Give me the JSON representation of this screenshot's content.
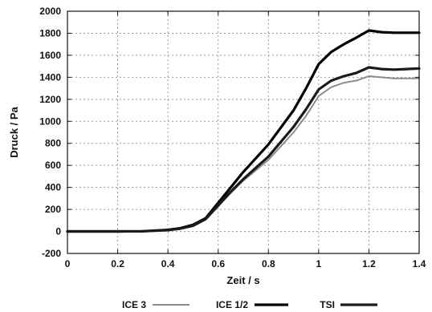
{
  "chart_data": {
    "type": "line",
    "title": "",
    "xlabel": "Zeit / s",
    "ylabel": "Druck / Pa",
    "xlim": [
      0,
      1.4
    ],
    "ylim": [
      -200,
      2000
    ],
    "xticks": [
      "0",
      "0.2",
      "0.4",
      "0.6",
      "0.8",
      "1",
      "1.2",
      "1.4"
    ],
    "yticks": [
      "-200",
      "0",
      "200",
      "400",
      "600",
      "800",
      "1000",
      "1200",
      "1400",
      "1600",
      "1800",
      "2000"
    ],
    "grid": true,
    "legend_position": "bottom",
    "series": [
      {
        "name": "ICE 3",
        "color": "#8c8c8c",
        "points": [
          [
            0,
            0
          ],
          [
            0.2,
            0
          ],
          [
            0.3,
            2
          ],
          [
            0.4,
            12
          ],
          [
            0.45,
            25
          ],
          [
            0.5,
            50
          ],
          [
            0.55,
            110
          ],
          [
            0.6,
            230
          ],
          [
            0.65,
            350
          ],
          [
            0.7,
            460
          ],
          [
            0.8,
            650
          ],
          [
            0.9,
            900
          ],
          [
            0.95,
            1050
          ],
          [
            1.0,
            1230
          ],
          [
            1.05,
            1310
          ],
          [
            1.1,
            1350
          ],
          [
            1.15,
            1370
          ],
          [
            1.2,
            1410
          ],
          [
            1.25,
            1400
          ],
          [
            1.3,
            1390
          ],
          [
            1.35,
            1390
          ],
          [
            1.4,
            1390
          ]
        ]
      },
      {
        "name": "ICE 1/2",
        "color": "#000000",
        "points": [
          [
            0,
            0
          ],
          [
            0.2,
            0
          ],
          [
            0.3,
            2
          ],
          [
            0.4,
            14
          ],
          [
            0.45,
            30
          ],
          [
            0.5,
            60
          ],
          [
            0.55,
            120
          ],
          [
            0.6,
            260
          ],
          [
            0.65,
            400
          ],
          [
            0.7,
            540
          ],
          [
            0.8,
            790
          ],
          [
            0.9,
            1100
          ],
          [
            0.95,
            1300
          ],
          [
            1.0,
            1520
          ],
          [
            1.05,
            1630
          ],
          [
            1.1,
            1700
          ],
          [
            1.15,
            1760
          ],
          [
            1.2,
            1825
          ],
          [
            1.25,
            1810
          ],
          [
            1.3,
            1805
          ],
          [
            1.35,
            1805
          ],
          [
            1.4,
            1805
          ]
        ]
      },
      {
        "name": "TSI",
        "color": "#1a1a1a",
        "points": [
          [
            0,
            0
          ],
          [
            0.2,
            0
          ],
          [
            0.3,
            2
          ],
          [
            0.4,
            12
          ],
          [
            0.45,
            26
          ],
          [
            0.5,
            52
          ],
          [
            0.55,
            112
          ],
          [
            0.6,
            235
          ],
          [
            0.65,
            360
          ],
          [
            0.7,
            475
          ],
          [
            0.8,
            680
          ],
          [
            0.9,
            950
          ],
          [
            0.95,
            1110
          ],
          [
            1.0,
            1290
          ],
          [
            1.05,
            1370
          ],
          [
            1.1,
            1410
          ],
          [
            1.15,
            1440
          ],
          [
            1.2,
            1490
          ],
          [
            1.25,
            1475
          ],
          [
            1.3,
            1470
          ],
          [
            1.35,
            1475
          ],
          [
            1.4,
            1480
          ]
        ]
      }
    ]
  }
}
